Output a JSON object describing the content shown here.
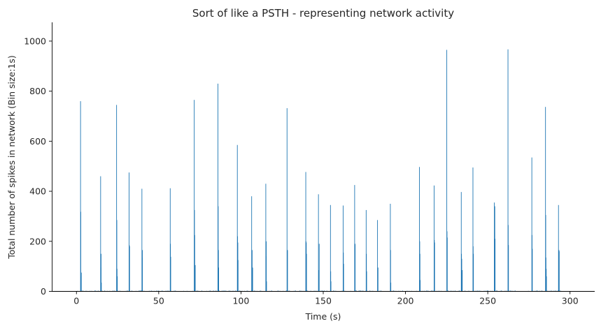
{
  "chart_data": {
    "type": "bar",
    "title": "Sort of like a PSTH - representing network activity",
    "xlabel": "Time (s)",
    "ylabel": "Total number of spikes in network (Bin size:1s)",
    "xlim": [
      -15,
      315
    ],
    "ylim": [
      0,
      1075
    ],
    "xticks": [
      0,
      50,
      100,
      150,
      200,
      250,
      300
    ],
    "yticks": [
      0,
      200,
      400,
      600,
      800,
      1000
    ],
    "bar_color": "#1f77b4",
    "baseline_noise": 3,
    "bursts": [
      {
        "t": 2.3,
        "decay": [
          760,
          318,
          60,
          75
        ]
      },
      {
        "t": 14.5,
        "decay": [
          460,
          95,
          150,
          35
        ]
      },
      {
        "t": 24.2,
        "decay": [
          745,
          285,
          90,
          60
        ]
      },
      {
        "t": 31.8,
        "decay": [
          475,
          185,
          180
        ]
      },
      {
        "t": 39.6,
        "decay": [
          410,
          135,
          165
        ]
      },
      {
        "t": 56.8,
        "decay": [
          412,
          190,
          138
        ]
      },
      {
        "t": 71.4,
        "decay": [
          765,
          325,
          225,
          85,
          105
        ]
      },
      {
        "t": 85.8,
        "decay": [
          830,
          340,
          165,
          95
        ]
      },
      {
        "t": 97.6,
        "decay": [
          585,
          220,
          195,
          125
        ]
      },
      {
        "t": 106.3,
        "decay": [
          380,
          155,
          165,
          85,
          95
        ]
      },
      {
        "t": 114.9,
        "decay": [
          430,
          140,
          200,
          40
        ]
      },
      {
        "t": 127.8,
        "decay": [
          732,
          160,
          165
        ]
      },
      {
        "t": 139.2,
        "decay": [
          477,
          200,
          195,
          150
        ]
      },
      {
        "t": 146.9,
        "decay": [
          388,
          80,
          85,
          190
        ]
      },
      {
        "t": 154.2,
        "decay": [
          345,
          80,
          40
        ]
      },
      {
        "t": 161.9,
        "decay": [
          343,
          155,
          110
        ]
      },
      {
        "t": 168.9,
        "decay": [
          425,
          185,
          190
        ]
      },
      {
        "t": 175.9,
        "decay": [
          325,
          150,
          80
        ]
      },
      {
        "t": 182.8,
        "decay": [
          285,
          90,
          95
        ]
      },
      {
        "t": 190.6,
        "decay": [
          350,
          165,
          35
        ]
      },
      {
        "t": 208.3,
        "decay": [
          497,
          200,
          150,
          45
        ]
      },
      {
        "t": 217.2,
        "decay": [
          423,
          205,
          195
        ]
      },
      {
        "t": 224.9,
        "decay": [
          965,
          240,
          215
        ]
      },
      {
        "t": 233.7,
        "decay": [
          397,
          150,
          130,
          75,
          85
        ]
      },
      {
        "t": 240.8,
        "decay": [
          495,
          180,
          150
        ]
      },
      {
        "t": 253.8,
        "decay": [
          355,
          235,
          340,
          210
        ]
      },
      {
        "t": 262.1,
        "decay": [
          967,
          265,
          185
        ]
      },
      {
        "t": 276.6,
        "decay": [
          535,
          225,
          170
        ]
      },
      {
        "t": 284.9,
        "decay": [
          737,
          305,
          135,
          90,
          60
        ]
      },
      {
        "t": 292.8,
        "decay": [
          345,
          125,
          165,
          160
        ]
      }
    ]
  }
}
